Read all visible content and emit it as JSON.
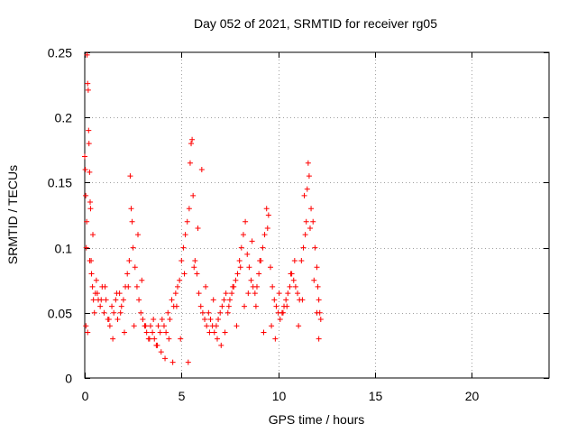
{
  "chart_data": {
    "type": "scatter",
    "title": "Day 052 of 2021, SRMTID for receiver rg05",
    "xlabel": "GPS time / hours",
    "ylabel": "SRMTID / TECUs",
    "xlim": [
      0,
      24
    ],
    "ylim": [
      0,
      0.25
    ],
    "xticks": [
      0,
      5,
      10,
      15,
      20
    ],
    "xtick_labels": [
      "0",
      "5",
      "10",
      "15",
      "20"
    ],
    "yticks": [
      0,
      0.05,
      0.1,
      0.15,
      0.2,
      0.25
    ],
    "ytick_labels": [
      "0",
      "0.05",
      "0.1",
      "0.15",
      "0.2",
      "0.25"
    ],
    "grid": true,
    "marker": "+",
    "series": [
      {
        "name": "SRMTID",
        "color": "#ff0000",
        "x": [
          0.0,
          0.03,
          0.05,
          0.08,
          0.1,
          0.12,
          0.15,
          0.18,
          0.2,
          0.22,
          0.25,
          0.28,
          0.3,
          0.33,
          0.35,
          0.4,
          0.45,
          0.5,
          0.55,
          0.6,
          0.7,
          0.8,
          0.9,
          1.0,
          1.1,
          1.2,
          1.3,
          1.4,
          1.5,
          1.6,
          1.7,
          1.8,
          1.9,
          2.0,
          2.1,
          2.2,
          2.3,
          2.35,
          2.4,
          2.45,
          2.5,
          2.6,
          2.7,
          2.8,
          2.9,
          3.0,
          3.1,
          3.2,
          3.3,
          3.4,
          3.5,
          3.6,
          3.7,
          3.8,
          3.9,
          4.0,
          4.1,
          4.2,
          4.3,
          4.4,
          4.5,
          4.6,
          4.7,
          4.8,
          4.9,
          5.0,
          5.1,
          5.2,
          5.3,
          5.4,
          5.45,
          5.5,
          5.55,
          5.6,
          5.7,
          5.8,
          5.9,
          6.0,
          6.1,
          6.2,
          6.3,
          6.4,
          6.5,
          6.6,
          6.7,
          6.8,
          6.9,
          7.0,
          7.1,
          7.2,
          7.3,
          7.4,
          7.5,
          7.6,
          7.7,
          7.8,
          7.9,
          8.0,
          8.1,
          8.2,
          8.3,
          8.4,
          8.5,
          8.6,
          8.7,
          8.8,
          8.9,
          9.0,
          9.1,
          9.2,
          9.3,
          9.4,
          9.5,
          9.6,
          9.7,
          9.8,
          9.9,
          10.0,
          10.1,
          10.2,
          10.3,
          10.4,
          10.5,
          10.6,
          10.7,
          10.8,
          10.9,
          11.0,
          11.1,
          11.2,
          11.3,
          11.4,
          11.45,
          11.5,
          11.55,
          11.6,
          11.7,
          11.8,
          11.9,
          12.0,
          12.05,
          12.1,
          12.15,
          12.2,
          0.06,
          0.15,
          0.26,
          0.42,
          0.65,
          0.85,
          1.05,
          1.25,
          1.45,
          1.65,
          1.85,
          2.05,
          2.25,
          2.55,
          2.75,
          2.95,
          3.15,
          3.35,
          3.55,
          3.75,
          3.95,
          4.15,
          4.35,
          4.55,
          4.75,
          4.95,
          5.15,
          5.35,
          5.65,
          5.85,
          6.05,
          6.25,
          6.45,
          6.65,
          6.85,
          7.05,
          7.25,
          7.45,
          7.65,
          7.85,
          8.05,
          8.25,
          8.45,
          8.65,
          8.85,
          9.05,
          9.25,
          9.45,
          9.65,
          9.85,
          10.05,
          10.25,
          10.45,
          10.65,
          10.85,
          11.05,
          11.25,
          11.35,
          11.65,
          11.85,
          12.0,
          12.1
        ],
        "y": [
          0.17,
          0.16,
          0.14,
          0.1,
          0.12,
          0.248,
          0.226,
          0.221,
          0.19,
          0.18,
          0.158,
          0.135,
          0.13,
          0.09,
          0.08,
          0.07,
          0.06,
          0.05,
          0.065,
          0.075,
          0.06,
          0.055,
          0.07,
          0.05,
          0.06,
          0.045,
          0.04,
          0.055,
          0.05,
          0.06,
          0.045,
          0.065,
          0.055,
          0.06,
          0.07,
          0.08,
          0.09,
          0.155,
          0.13,
          0.12,
          0.1,
          0.085,
          0.07,
          0.06,
          0.05,
          0.045,
          0.04,
          0.035,
          0.03,
          0.04,
          0.035,
          0.03,
          0.025,
          0.04,
          0.035,
          0.045,
          0.04,
          0.035,
          0.05,
          0.045,
          0.06,
          0.055,
          0.065,
          0.07,
          0.075,
          0.09,
          0.1,
          0.11,
          0.12,
          0.13,
          0.165,
          0.18,
          0.183,
          0.14,
          0.09,
          0.08,
          0.065,
          0.055,
          0.05,
          0.045,
          0.04,
          0.05,
          0.045,
          0.04,
          0.035,
          0.04,
          0.045,
          0.05,
          0.055,
          0.06,
          0.065,
          0.05,
          0.06,
          0.065,
          0.07,
          0.075,
          0.08,
          0.09,
          0.1,
          0.11,
          0.12,
          0.095,
          0.085,
          0.075,
          0.07,
          0.065,
          0.07,
          0.08,
          0.09,
          0.1,
          0.11,
          0.13,
          0.125,
          0.085,
          0.07,
          0.06,
          0.055,
          0.05,
          0.045,
          0.05,
          0.055,
          0.06,
          0.065,
          0.07,
          0.08,
          0.075,
          0.07,
          0.065,
          0.06,
          0.09,
          0.1,
          0.11,
          0.12,
          0.145,
          0.165,
          0.155,
          0.13,
          0.12,
          0.1,
          0.085,
          0.07,
          0.06,
          0.05,
          0.045,
          0.04,
          0.035,
          0.09,
          0.11,
          0.065,
          0.06,
          0.07,
          0.045,
          0.03,
          0.065,
          0.05,
          0.035,
          0.07,
          0.04,
          0.11,
          0.075,
          0.04,
          0.03,
          0.045,
          0.025,
          0.02,
          0.015,
          0.03,
          0.012,
          0.055,
          0.03,
          0.08,
          0.012,
          0.085,
          0.115,
          0.16,
          0.07,
          0.035,
          0.06,
          0.03,
          0.025,
          0.035,
          0.055,
          0.07,
          0.04,
          0.085,
          0.055,
          0.065,
          0.105,
          0.055,
          0.09,
          0.035,
          0.115,
          0.04,
          0.03,
          0.065,
          0.05,
          0.055,
          0.08,
          0.09,
          0.04,
          0.06,
          0.14,
          0.115,
          0.075,
          0.05,
          0.03
        ]
      }
    ]
  }
}
